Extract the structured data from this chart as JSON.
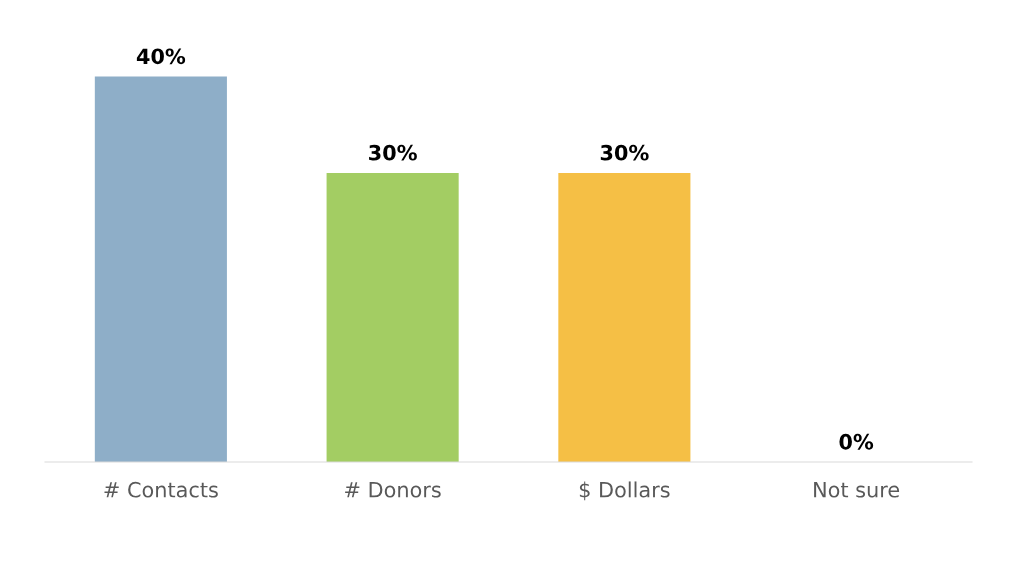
{
  "chart_data": {
    "type": "bar",
    "categories": [
      "# Contacts",
      "# Donors",
      "$ Dollars",
      "Not sure"
    ],
    "values": [
      40,
      30,
      30,
      0
    ],
    "colors": [
      "#8eaec8",
      "#a3cd63",
      "#f5bf45",
      "#8eaec8"
    ],
    "value_labels": [
      "40%",
      "30%",
      "30%",
      "0%"
    ],
    "grid": false,
    "legend": false
  }
}
